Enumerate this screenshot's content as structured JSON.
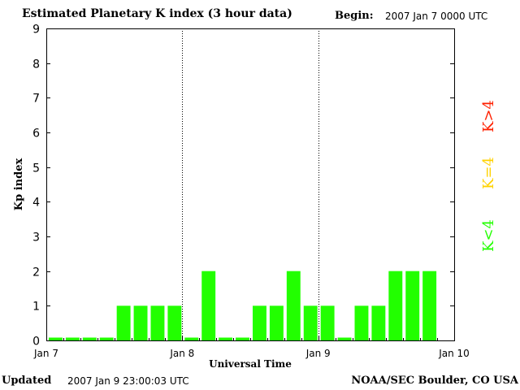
{
  "header": {
    "title": "Estimated Planetary K index (3 hour data)",
    "begin_label": "Begin:",
    "begin_value": "2007 Jan 7 0000 UTC"
  },
  "footer": {
    "updated_label": "Updated",
    "updated_value": "2007 Jan  9 23:00:03 UTC",
    "source": "NOAA/SEC Boulder, CO USA"
  },
  "legend": [
    {
      "label": "K>4",
      "color": "#ff2000"
    },
    {
      "label": "K=4",
      "color": "#ffd200"
    },
    {
      "label": "K<4",
      "color": "#22ff00"
    }
  ],
  "chart_data": {
    "type": "bar",
    "xlabel": "Universal Time",
    "ylabel": "Kp index",
    "ylim": [
      0,
      9
    ],
    "yticks": [
      0,
      1,
      2,
      3,
      4,
      5,
      6,
      7,
      8,
      9
    ],
    "xtick_labels": [
      "Jan 7",
      "Jan 8",
      "Jan 9",
      "Jan 10"
    ],
    "day_separators": [
      "Jan 8",
      "Jan 9"
    ],
    "interval_hours": 3,
    "bar_color": "#22ff00",
    "categories": [
      "Jan 7 00",
      "Jan 7 03",
      "Jan 7 06",
      "Jan 7 09",
      "Jan 7 12",
      "Jan 7 15",
      "Jan 7 18",
      "Jan 7 21",
      "Jan 8 00",
      "Jan 8 03",
      "Jan 8 06",
      "Jan 8 09",
      "Jan 8 12",
      "Jan 8 15",
      "Jan 8 18",
      "Jan 8 21",
      "Jan 9 00",
      "Jan 9 03",
      "Jan 9 06",
      "Jan 9 09",
      "Jan 9 12",
      "Jan 9 15",
      "Jan 9 18",
      "Jan 9 21"
    ],
    "values": [
      0,
      0,
      0,
      0,
      1,
      1,
      1,
      1,
      0,
      2,
      0,
      0,
      1,
      1,
      2,
      1,
      1,
      0,
      1,
      1,
      2,
      2,
      2,
      null
    ]
  }
}
